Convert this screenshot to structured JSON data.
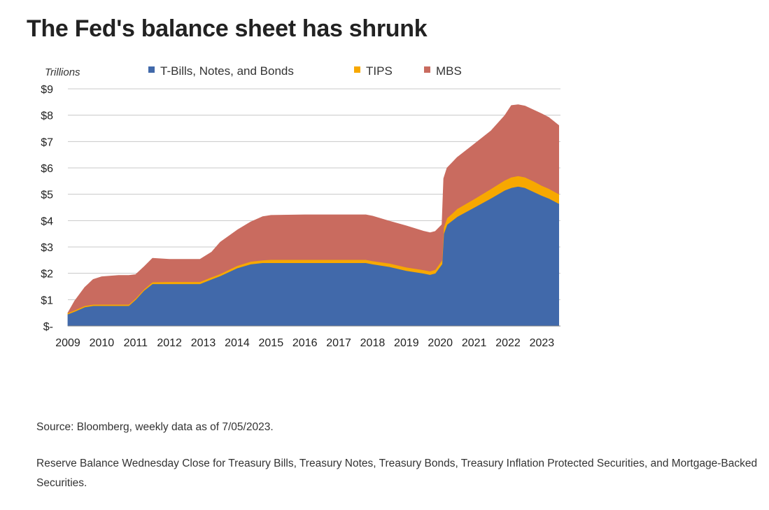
{
  "page": {
    "title": "The Fed's balance sheet has shrunk",
    "source_note": "Source: Bloomberg, weekly data as of 7/05/2023.",
    "description_note": "Reserve Balance Wednesday Close for Treasury Bills, Treasury Notes, Treasury Bonds, Treasury Inflation Protected Securities, and Mortgage-Backed Securities."
  },
  "chart_data": {
    "type": "area",
    "stacked": true,
    "title": "",
    "ylabel": "Trillions",
    "xlabel": "",
    "legend_position": "top",
    "grid": "horizontal",
    "ylim": [
      0,
      9
    ],
    "xlim": [
      2009.0,
      2023.55
    ],
    "y_ticks": [
      {
        "value": 0,
        "label": "$-"
      },
      {
        "value": 1,
        "label": "$1"
      },
      {
        "value": 2,
        "label": "$2"
      },
      {
        "value": 3,
        "label": "$3"
      },
      {
        "value": 4,
        "label": "$4"
      },
      {
        "value": 5,
        "label": "$5"
      },
      {
        "value": 6,
        "label": "$6"
      },
      {
        "value": 7,
        "label": "$7"
      },
      {
        "value": 8,
        "label": "$8"
      },
      {
        "value": 9,
        "label": "$9"
      }
    ],
    "x_ticks": [
      {
        "value": 2009,
        "label": "2009"
      },
      {
        "value": 2010,
        "label": "2010"
      },
      {
        "value": 2011,
        "label": "2011"
      },
      {
        "value": 2012,
        "label": "2012"
      },
      {
        "value": 2013,
        "label": "2013"
      },
      {
        "value": 2014,
        "label": "2014"
      },
      {
        "value": 2015,
        "label": "2015"
      },
      {
        "value": 2016,
        "label": "2016"
      },
      {
        "value": 2017,
        "label": "2017"
      },
      {
        "value": 2018,
        "label": "2018"
      },
      {
        "value": 2019,
        "label": "2019"
      },
      {
        "value": 2020,
        "label": "2020"
      },
      {
        "value": 2021,
        "label": "2021"
      },
      {
        "value": 2022,
        "label": "2022"
      },
      {
        "value": 2023,
        "label": "2023"
      }
    ],
    "x": [
      2009.0,
      2009.2,
      2009.5,
      2009.75,
      2010.0,
      2010.5,
      2010.8,
      2011.0,
      2011.25,
      2011.5,
      2012.0,
      2012.5,
      2012.9,
      2013.25,
      2013.5,
      2014.0,
      2014.4,
      2014.75,
      2015.0,
      2016.0,
      2017.0,
      2017.8,
      2018.0,
      2018.5,
      2019.0,
      2019.5,
      2019.7,
      2019.85,
      2020.05,
      2020.1,
      2020.2,
      2020.35,
      2020.5,
      2021.0,
      2021.5,
      2021.9,
      2022.1,
      2022.3,
      2022.5,
      2022.75,
      2023.0,
      2023.2,
      2023.5
    ],
    "series": [
      {
        "name": "T-Bills, Notes, and Bonds",
        "color": "#4169aa",
        "values": [
          0.45,
          0.55,
          0.72,
          0.77,
          0.77,
          0.77,
          0.77,
          1.0,
          1.35,
          1.6,
          1.6,
          1.6,
          1.6,
          1.78,
          1.9,
          2.2,
          2.35,
          2.4,
          2.4,
          2.4,
          2.4,
          2.4,
          2.35,
          2.25,
          2.1,
          2.0,
          1.95,
          2.0,
          2.35,
          3.5,
          3.85,
          4.0,
          4.15,
          4.5,
          4.85,
          5.15,
          5.25,
          5.3,
          5.25,
          5.1,
          4.95,
          4.85,
          4.65
        ]
      },
      {
        "name": "TIPS",
        "color": "#f7a800",
        "values": [
          0.05,
          0.05,
          0.05,
          0.05,
          0.05,
          0.05,
          0.05,
          0.05,
          0.05,
          0.07,
          0.08,
          0.08,
          0.08,
          0.08,
          0.08,
          0.09,
          0.1,
          0.1,
          0.12,
          0.12,
          0.12,
          0.12,
          0.12,
          0.13,
          0.13,
          0.13,
          0.13,
          0.14,
          0.15,
          0.25,
          0.25,
          0.27,
          0.3,
          0.32,
          0.36,
          0.38,
          0.4,
          0.4,
          0.4,
          0.4,
          0.38,
          0.37,
          0.36
        ]
      },
      {
        "name": "MBS",
        "color": "#c96b5f",
        "values": [
          0.0,
          0.35,
          0.7,
          0.95,
          1.05,
          1.1,
          1.1,
          0.9,
          0.85,
          0.9,
          0.85,
          0.85,
          0.85,
          0.95,
          1.2,
          1.35,
          1.5,
          1.65,
          1.68,
          1.7,
          1.7,
          1.7,
          1.7,
          1.6,
          1.57,
          1.47,
          1.46,
          1.45,
          1.35,
          1.85,
          1.9,
          1.93,
          1.95,
          2.08,
          2.2,
          2.45,
          2.72,
          2.7,
          2.7,
          2.7,
          2.72,
          2.7,
          2.6
        ]
      }
    ]
  }
}
